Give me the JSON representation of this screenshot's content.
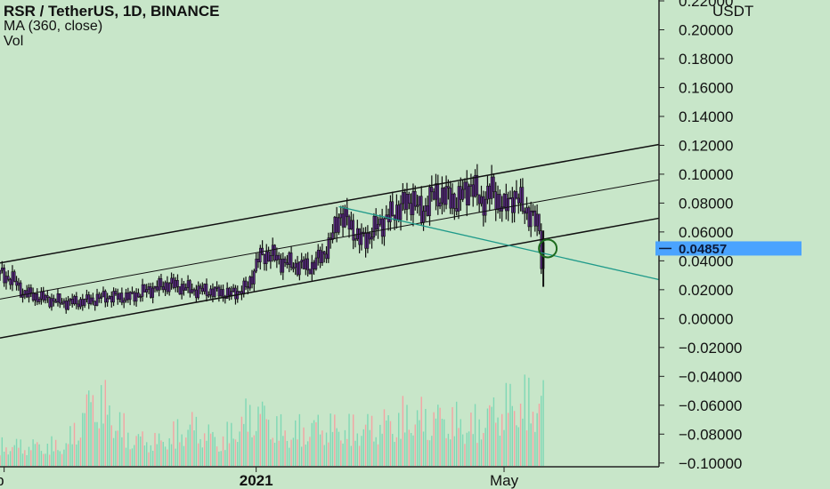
{
  "legend": {
    "title": "RSR / TetherUS, 1D, BINANCE",
    "indicator": "MA (360, close)",
    "volume": "Vol"
  },
  "colors": {
    "background": "#c8e6c9",
    "candle_body": "#5b2a86",
    "candle_wick": "#111111",
    "channel_line": "#111111",
    "trend_line": "#1f9a8a",
    "current_price_bg": "#4aa3ff",
    "volume_up": "#7fd8b5",
    "volume_down": "#f4a3a3",
    "circle_marker": "#1e6b1e"
  },
  "chart_data": {
    "type": "line",
    "title": "RSR / TetherUS, 1D, BINANCE",
    "ylabel": "USDT",
    "xlabel": "",
    "y_unit": "USDT",
    "ylim": [
      -0.11,
      0.22
    ],
    "y_ticks": [
      "0.22000",
      "0.20000",
      "0.18000",
      "0.16000",
      "0.14000",
      "0.12000",
      "0.10000",
      "0.08000",
      "0.06000",
      "0.04000",
      "0.02000",
      "0.00000",
      "−0.02000",
      "−0.04000",
      "−0.06000",
      "−0.08000",
      "−0.10000"
    ],
    "y_tick_values": [
      0.22,
      0.2,
      0.18,
      0.16,
      0.14,
      0.12,
      0.1,
      0.08,
      0.06,
      0.04,
      0.02,
      0.0,
      -0.02,
      -0.04,
      -0.06,
      -0.08,
      -0.1
    ],
    "x_tick_labels": [
      "ep",
      "2021",
      "May"
    ],
    "x_tick_dates": [
      "2020-09-01",
      "2021-01-01",
      "2021-05-01"
    ],
    "x_range": [
      "2020-08-30",
      "2021-07-15"
    ],
    "current_price": "0.04857",
    "current_price_value": 0.04857,
    "price_series": {
      "name": "RSR / TetherUS",
      "dates": [
        "2020-08-30",
        "2020-09-05",
        "2020-09-10",
        "2020-09-20",
        "2020-10-01",
        "2020-10-10",
        "2020-10-20",
        "2020-11-01",
        "2020-11-10",
        "2020-11-20",
        "2020-12-01",
        "2020-12-10",
        "2020-12-20",
        "2020-12-28",
        "2021-01-02",
        "2021-01-08",
        "2021-01-12",
        "2021-01-20",
        "2021-01-28",
        "2021-02-05",
        "2021-02-10",
        "2021-02-15",
        "2021-02-20",
        "2021-02-25",
        "2021-03-01",
        "2021-03-06",
        "2021-03-12",
        "2021-03-18",
        "2021-03-22",
        "2021-03-26",
        "2021-04-01",
        "2021-04-08",
        "2021-04-15",
        "2021-04-20",
        "2021-04-25",
        "2021-05-01",
        "2021-05-05",
        "2021-05-10",
        "2021-05-14",
        "2021-05-18",
        "2021-05-19",
        "2021-05-20"
      ],
      "values": [
        0.031,
        0.027,
        0.018,
        0.014,
        0.011,
        0.012,
        0.015,
        0.015,
        0.02,
        0.024,
        0.02,
        0.019,
        0.017,
        0.022,
        0.042,
        0.045,
        0.04,
        0.037,
        0.036,
        0.05,
        0.072,
        0.066,
        0.054,
        0.058,
        0.065,
        0.07,
        0.078,
        0.083,
        0.072,
        0.084,
        0.086,
        0.081,
        0.093,
        0.08,
        0.089,
        0.076,
        0.085,
        0.079,
        0.07,
        0.065,
        0.04,
        0.04857
      ]
    },
    "channel_upper": {
      "dates": [
        "2020-08-30",
        "2021-07-15"
      ],
      "values": [
        0.0385,
        0.1206
      ]
    },
    "channel_mid": {
      "dates": [
        "2020-08-30",
        "2021-07-15"
      ],
      "values": [
        0.0135,
        0.0961
      ]
    },
    "channel_lower": {
      "dates": [
        "2020-08-30",
        "2021-07-15"
      ],
      "values": [
        -0.0134,
        0.0695
      ]
    },
    "trend_line": {
      "dates": [
        "2021-02-10",
        "2021-07-15"
      ],
      "values": [
        0.0775,
        0.027
      ]
    },
    "volume": {
      "dates": [
        "2020-10-01",
        "2020-10-15",
        "2020-11-01",
        "2020-11-15",
        "2020-12-01",
        "2020-12-15",
        "2021-01-01",
        "2021-01-15",
        "2021-02-01",
        "2021-02-15",
        "2021-03-01",
        "2021-03-15",
        "2021-04-01",
        "2021-04-15",
        "2021-05-01",
        "2021-05-15"
      ],
      "relative": [
        0.25,
        0.9,
        0.35,
        0.3,
        0.5,
        0.3,
        0.7,
        0.4,
        0.5,
        0.45,
        0.5,
        0.6,
        0.6,
        0.5,
        0.75,
        0.8
      ]
    }
  }
}
